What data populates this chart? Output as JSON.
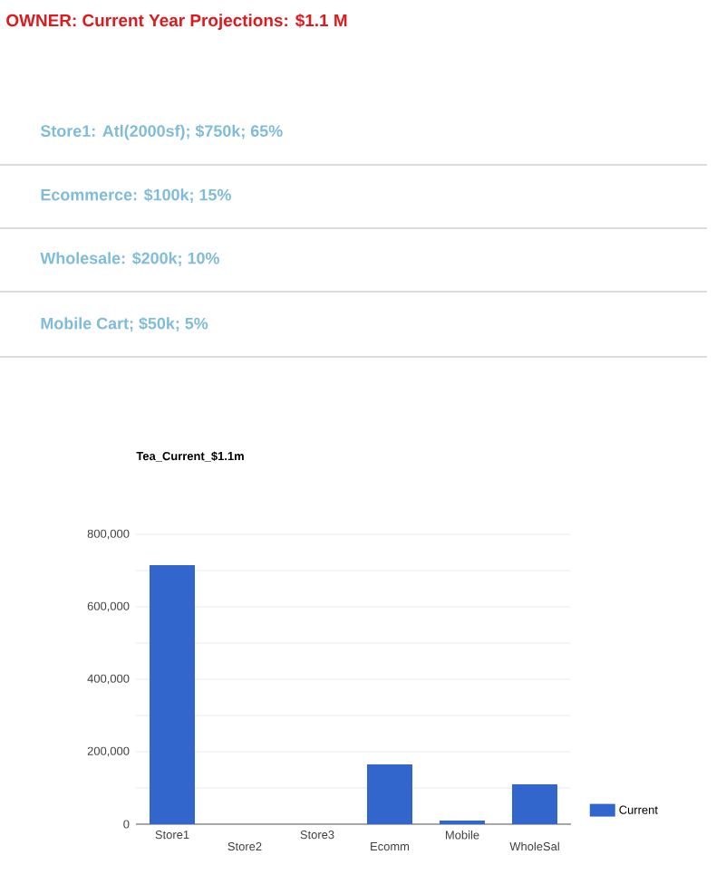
{
  "chart_data": {
    "type": "bar",
    "title": "OWNER: Current Year Projections: $1.1 M",
    "subtitle": "Tea_Current_$1.1m",
    "annotations": [
      "Store1: Atl(2000sf); $750k; 65%",
      "Ecommerce: $100k; 15%",
      "Wholesale: $200k; 10%",
      "Mobile Cart; $50k; 5%"
    ],
    "categories": [
      "Store1",
      "Store2",
      "Store3",
      "Ecomm",
      "Mobile",
      "WholeSal"
    ],
    "series": [
      {
        "name": "Current",
        "color": "#3366cc",
        "values": [
          715000,
          0,
          0,
          165000,
          10000,
          110000
        ]
      }
    ],
    "ylim": [
      0,
      800000
    ],
    "yticks": [
      0,
      {
        "value": 100000,
        "label": null
      },
      {
        "value": 200000,
        "label": "200,000"
      },
      {
        "value": 300000,
        "label": null
      },
      {
        "value": 400000,
        "label": "400,000"
      },
      {
        "value": 500000,
        "label": null
      },
      {
        "value": 600000,
        "label": "600,000"
      },
      {
        "value": 700000,
        "label": null
      },
      {
        "value": 800000,
        "label": "800,000"
      }
    ],
    "grid": "y",
    "legend": "right"
  }
}
